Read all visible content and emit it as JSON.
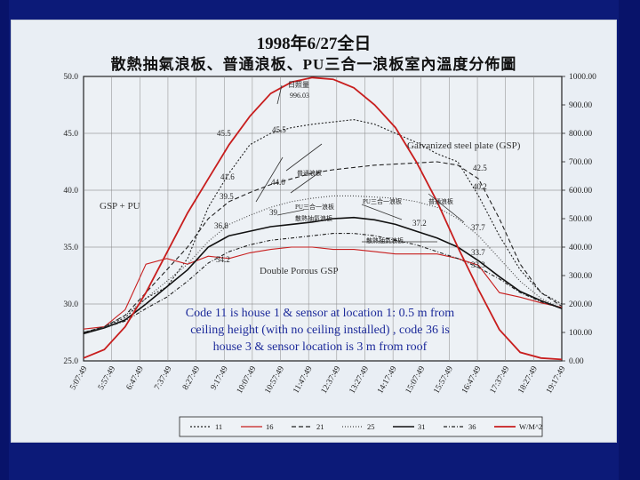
{
  "title": "1998年6/27全日",
  "subtitle": "散熱抽氣浪板、普通浪板、PU三合一浪板室內溫度分佈圖",
  "chart_data": {
    "type": "line",
    "y_left": {
      "ylim": [
        25,
        50
      ],
      "ticks": [
        "50.0",
        "45.0",
        "40.0",
        "35.0",
        "30.0",
        "25.0"
      ]
    },
    "y_right": {
      "ylim": [
        0,
        1000
      ],
      "ticks": [
        "1000.00",
        "900.00",
        "800.00",
        "700.00",
        "600.00",
        "500.00",
        "400.00",
        "300.00",
        "200.00",
        "100.00",
        "0.00"
      ]
    },
    "x_ticks": [
      "5:07:49",
      "5:57:49",
      "6:47:49",
      "7:37:49",
      "8:27:49",
      "9:17:49",
      "10:07:49",
      "10:57:49",
      "11:47:49",
      "12:37:49",
      "13:27:49",
      "14:17:49",
      "15:07:49",
      "15:57:49",
      "16:47:49",
      "17:37:49",
      "18:27:49",
      "19:17:49"
    ],
    "series": [
      {
        "name": "11",
        "axis": "left",
        "color": "#222222",
        "dash": "2,2",
        "values": [
          27.5,
          28.0,
          28.8,
          30.5,
          31.5,
          34.0,
          38.5,
          41.5,
          44.0,
          45.0,
          45.5,
          45.8,
          46.0,
          46.2,
          45.8,
          45.0,
          44.2,
          43.2,
          42.5,
          39.5,
          36.0,
          33.0,
          31.0,
          30.0
        ]
      },
      {
        "name": "16",
        "axis": "left",
        "color": "#c81e1e",
        "values": [
          27.8,
          28.0,
          29.5,
          33.5,
          34.0,
          33.5,
          34.2,
          34.0,
          34.5,
          34.8,
          35.0,
          35.0,
          34.8,
          34.8,
          34.6,
          34.4,
          34.4,
          34.4,
          34.0,
          33.4,
          31.0,
          30.6,
          30.1,
          29.7
        ]
      },
      {
        "name": "21",
        "axis": "left",
        "color": "#222222",
        "dash": "5,3",
        "values": [
          27.5,
          28.0,
          29.0,
          31.0,
          33.0,
          35.0,
          37.5,
          39.0,
          39.8,
          40.5,
          41.0,
          41.5,
          41.8,
          42.0,
          42.2,
          42.3,
          42.4,
          42.5,
          42.2,
          41.0,
          37.5,
          33.5,
          31.0,
          29.8
        ]
      },
      {
        "name": "25",
        "axis": "left",
        "color": "#444444",
        "dash": "1,2",
        "values": [
          27.5,
          28.0,
          29.0,
          30.5,
          32.0,
          33.5,
          35.5,
          37.0,
          37.8,
          38.5,
          39.0,
          39.3,
          39.5,
          39.5,
          39.4,
          39.3,
          39.0,
          38.5,
          37.5,
          36.0,
          34.0,
          32.0,
          30.5,
          29.6
        ]
      },
      {
        "name": "31",
        "axis": "left",
        "color": "#111111",
        "width": 1.6,
        "values": [
          27.4,
          27.9,
          28.6,
          30.0,
          31.5,
          33.0,
          35.0,
          36.0,
          36.4,
          36.8,
          37.0,
          37.2,
          37.5,
          37.6,
          37.4,
          37.0,
          36.4,
          35.8,
          35.0,
          33.8,
          32.4,
          31.1,
          30.3,
          29.6
        ]
      },
      {
        "name": "36",
        "axis": "left",
        "color": "#222222",
        "dash": "4,2,1,2",
        "values": [
          27.5,
          27.9,
          28.5,
          29.6,
          30.6,
          32.0,
          33.6,
          34.6,
          35.2,
          35.6,
          35.8,
          36.0,
          36.2,
          36.2,
          36.0,
          35.6,
          35.2,
          34.6,
          34.0,
          33.2,
          32.2,
          31.0,
          30.2,
          29.6
        ]
      },
      {
        "name": "W/M^2",
        "axis": "right",
        "color": "#c81e1e",
        "width": 1.8,
        "values": [
          10,
          40,
          120,
          240,
          380,
          520,
          640,
          760,
          860,
          940,
          980,
          996,
          990,
          960,
          900,
          820,
          700,
          560,
          400,
          250,
          110,
          30,
          10,
          5
        ]
      }
    ],
    "legend": [
      "11",
      "16",
      "21",
      "25",
      "31",
      "36",
      "W/M^2"
    ],
    "peak_label": "日照量",
    "peak_value": "996.03",
    "value_labels": [
      "45.5",
      "45.5",
      "41.6",
      "44.0",
      "39.5",
      "36.8",
      "34.2",
      "42.5",
      "40.2",
      "37.7",
      "33.7",
      "33.3",
      "37.2",
      "39"
    ],
    "inline_labels": [
      "普通浪板",
      "PU三合一浪板",
      "散熱抽氣浪板",
      "PU三合一浪板",
      "普通浪板",
      "散熱抽氣浪板"
    ],
    "annotations_en": [
      "Galvanized steel plate (GSP)",
      "GSP + PU",
      "Double Porous GSP"
    ],
    "caption_lines": [
      "Code 11 is house 1 & sensor at location 1: 0.5 m from",
      "ceiling height (with no ceiling installed) , code 36 is",
      "house 3 & sensor location is 3 m from roof"
    ]
  }
}
